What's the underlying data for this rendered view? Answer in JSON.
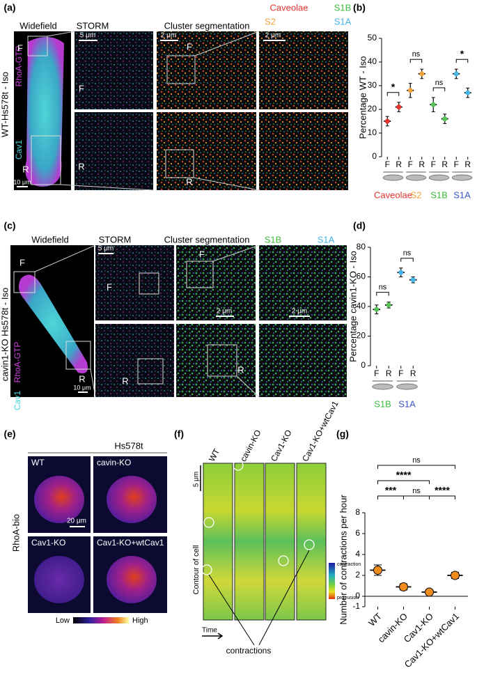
{
  "panels": {
    "a": {
      "label": "(a)",
      "titles": [
        "Widefield",
        "STORM",
        "Cluster segmentation"
      ],
      "legend": [
        "Caveolae",
        "S2",
        "S1B",
        "S1A"
      ],
      "side_label": "WT-Hs578t - Iso",
      "stain": [
        "RhoA-GTP",
        "Cav1"
      ],
      "markers": [
        "F",
        "R",
        "F",
        "R",
        "F",
        "R"
      ],
      "scale_bars": [
        "10 μm",
        "5 μm",
        "2 μm",
        "2 μm"
      ]
    },
    "c": {
      "label": "(c)",
      "titles": [
        "Widefield",
        "STORM",
        "Cluster segmentation"
      ],
      "legend": [
        "S1B",
        "S1A"
      ],
      "side_label": "cavin1-KO Hs578t - Iso",
      "stain": [
        "RhoA-GTP",
        "Cav1"
      ],
      "markers": [
        "F",
        "R",
        "F",
        "R",
        "F",
        "R"
      ],
      "scale_bars": [
        "10 μm",
        "5 μm",
        "2 μm",
        "2 μm"
      ]
    },
    "e": {
      "label": "(e)",
      "title": "Hs578t",
      "side_label": "RhoA-bio",
      "cells": [
        "WT",
        "cavin-KO",
        "Cav1-KO",
        "Cav1-KO+wtCav1"
      ],
      "scale_bar": "20 μm",
      "colorbar": [
        "Low",
        "High"
      ]
    },
    "f": {
      "label": "(f)",
      "columns": [
        "WT",
        "cavin-KO",
        "Cav1-KO",
        "Cav1-KO+wtCav1"
      ],
      "scale": "5 μm",
      "y_axis": "Contour of cell",
      "x_axis": "Time",
      "colorbar": [
        "contraction",
        "protrusion"
      ],
      "annotation": "contractions"
    }
  },
  "chart_data": [
    {
      "type": "dotplot",
      "panel_label": "(b)",
      "ylabel": "Percentage WT - Iso",
      "categories": [
        "F",
        "R",
        "F",
        "R",
        "F",
        "R",
        "F",
        "R"
      ],
      "values": [
        15,
        21,
        28,
        35,
        22,
        16,
        35,
        27
      ],
      "errors": [
        2,
        2,
        3,
        2,
        3,
        2,
        2,
        2
      ],
      "colors": [
        "#e3342f",
        "#e3342f",
        "#f0a33a",
        "#f0a33a",
        "#55c455",
        "#55c455",
        "#45b4e6",
        "#45b4e6"
      ],
      "groups": [
        "Caveolae",
        "S2",
        "S1B",
        "S1A"
      ],
      "group_colors": [
        "#e3342f",
        "#f0a33a",
        "#3dbb3d",
        "#3a55c8"
      ],
      "significance": [
        "*",
        "ns",
        "ns",
        "*"
      ],
      "ylim": [
        0,
        50
      ],
      "yticks": [
        0,
        10,
        20,
        30,
        40,
        50
      ]
    },
    {
      "type": "dotplot",
      "panel_label": "(d)",
      "ylabel": "Percentage cavin1-KO - Iso",
      "categories": [
        "F",
        "R",
        "F",
        "R"
      ],
      "values": [
        38,
        41,
        63,
        58
      ],
      "errors": [
        3,
        2,
        3,
        2
      ],
      "colors": [
        "#55c455",
        "#55c455",
        "#45b4e6",
        "#45b4e6"
      ],
      "groups": [
        "S1B",
        "S1A"
      ],
      "group_colors": [
        "#3dbb3d",
        "#3a55c8"
      ],
      "significance": [
        "ns",
        "ns"
      ],
      "ylim": [
        0,
        80
      ],
      "yticks": [
        0,
        20,
        40,
        60,
        80
      ]
    },
    {
      "type": "dotplot",
      "panel_label": "(g)",
      "ylabel": "Number of contractions per hour",
      "categories": [
        "WT",
        "cavin-KO",
        "Cav1-KO",
        "Cav1-KO+wtCav1"
      ],
      "values": [
        2.5,
        0.9,
        0.4,
        2.0
      ],
      "errors": [
        0.5,
        0.3,
        0.2,
        0.3
      ],
      "colors": [
        "#f08c1e",
        "#f08c1e",
        "#f08c1e",
        "#f08c1e"
      ],
      "significance": [
        "ns",
        "****",
        "***",
        "ns",
        "****"
      ],
      "ylim": [
        -1,
        8
      ],
      "yticks": [
        -1,
        0,
        2,
        4,
        6,
        8
      ]
    }
  ]
}
